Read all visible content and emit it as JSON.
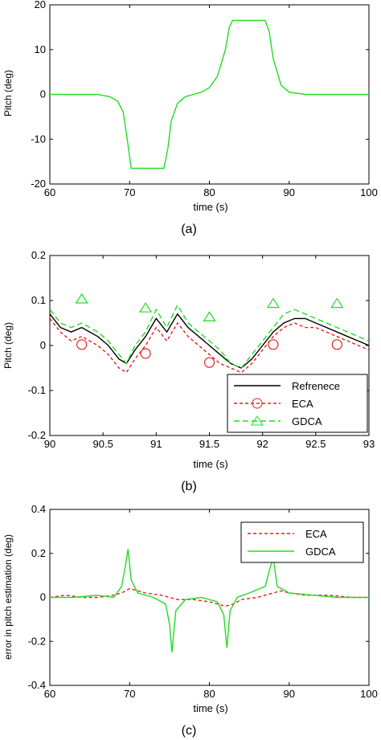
{
  "colors": {
    "reference": "#000000",
    "eca": "#e8201c",
    "gdca": "#22dd22",
    "frame": "#000000"
  },
  "chart_data": [
    {
      "type": "line",
      "caption": "(a)",
      "xlabel": "time (s)",
      "ylabel": "Pitch (deg)",
      "xlim": [
        60,
        100
      ],
      "ylim": [
        -20,
        20
      ],
      "xticks": [
        "60",
        "70",
        "80",
        "90",
        "100"
      ],
      "yticks": [
        "20",
        "10",
        "0",
        "-10",
        "-20"
      ],
      "grid": false,
      "series": [
        {
          "x": [
            60,
            66,
            67.5,
            68.5,
            69.2,
            69.7,
            70.2,
            72,
            74.3,
            74.8,
            75.2,
            76,
            77,
            78,
            79,
            80,
            81,
            82,
            82.5,
            82.9,
            84,
            86,
            87,
            87.5,
            88,
            89,
            90,
            92,
            95,
            100
          ],
          "y": [
            0,
            0,
            -0.5,
            -1.5,
            -4,
            -10,
            -16.5,
            -16.5,
            -16.5,
            -12,
            -6,
            -2,
            -0.5,
            0,
            0.5,
            1.5,
            4,
            10,
            15,
            16.5,
            16.5,
            16.5,
            16.5,
            14,
            8,
            2,
            0.5,
            0,
            0,
            0
          ]
        }
      ]
    },
    {
      "type": "line",
      "caption": "(b)",
      "xlabel": "time (s)",
      "ylabel": "Pitch (deg)",
      "xlim": [
        90,
        93
      ],
      "ylim": [
        -0.2,
        0.2
      ],
      "xticks": [
        "90",
        "90.5",
        "91",
        "91.5",
        "92",
        "92.5",
        "93"
      ],
      "yticks": [
        "0.2",
        "0.1",
        "0",
        "-0.1",
        "-0.2"
      ],
      "grid": false,
      "legend_position": "bottom-right",
      "legend": [
        "Refrenece",
        "ECA",
        "GDCA"
      ],
      "series": [
        {
          "name": "Refrenece",
          "x": [
            90,
            90.1,
            90.2,
            90.3,
            90.45,
            90.55,
            90.65,
            90.72,
            90.8,
            90.9,
            91.0,
            91.1,
            91.2,
            91.3,
            91.4,
            91.5,
            91.6,
            91.7,
            91.8,
            91.9,
            92.0,
            92.1,
            92.2,
            92.3,
            92.4,
            92.5,
            92.6,
            92.7,
            92.8,
            92.9,
            93.0
          ],
          "y": [
            0.07,
            0.04,
            0.03,
            0.04,
            0.02,
            0.0,
            -0.03,
            -0.04,
            -0.01,
            0.02,
            0.06,
            0.03,
            0.07,
            0.04,
            0.02,
            0.0,
            -0.02,
            -0.04,
            -0.05,
            -0.03,
            0.0,
            0.03,
            0.05,
            0.06,
            0.06,
            0.05,
            0.04,
            0.03,
            0.02,
            0.01,
            0.0
          ]
        },
        {
          "name": "ECA",
          "x": [
            90,
            90.1,
            90.2,
            90.3,
            90.45,
            90.55,
            90.65,
            90.72,
            90.8,
            90.9,
            91.0,
            91.1,
            91.2,
            91.3,
            91.4,
            91.5,
            91.6,
            91.7,
            91.8,
            91.9,
            92.0,
            92.1,
            92.2,
            92.3,
            92.4,
            92.5,
            92.6,
            92.7,
            92.8,
            92.9,
            93.0
          ],
          "y": [
            0.06,
            0.03,
            0.01,
            0.02,
            0.0,
            -0.02,
            -0.05,
            -0.06,
            -0.03,
            0.0,
            0.04,
            0.01,
            0.05,
            0.02,
            0.0,
            -0.02,
            -0.04,
            -0.05,
            -0.06,
            -0.04,
            -0.01,
            0.02,
            0.04,
            0.05,
            0.04,
            0.04,
            0.03,
            0.02,
            0.01,
            0.0,
            -0.01
          ]
        },
        {
          "name": "GDCA",
          "x": [
            90,
            90.1,
            90.2,
            90.3,
            90.45,
            90.55,
            90.65,
            90.72,
            90.8,
            90.9,
            91.0,
            91.1,
            91.2,
            91.3,
            91.4,
            91.5,
            91.6,
            91.7,
            91.8,
            91.9,
            92.0,
            92.1,
            92.2,
            92.3,
            92.4,
            92.5,
            92.6,
            92.7,
            92.8,
            92.9,
            93.0
          ],
          "y": [
            0.08,
            0.05,
            0.04,
            0.05,
            0.03,
            0.01,
            -0.02,
            -0.04,
            0.0,
            0.03,
            0.08,
            0.04,
            0.09,
            0.05,
            0.03,
            0.01,
            -0.01,
            -0.04,
            -0.05,
            -0.02,
            0.01,
            0.04,
            0.07,
            0.08,
            0.07,
            0.06,
            0.05,
            0.04,
            0.03,
            0.02,
            0.01
          ]
        }
      ]
    },
    {
      "type": "line",
      "caption": "(c)",
      "xlabel": "time (s)",
      "ylabel": "error in pitch estimation (deg)",
      "xlim": [
        60,
        100
      ],
      "ylim": [
        -0.4,
        0.4
      ],
      "xticks": [
        "60",
        "70",
        "80",
        "90",
        "100"
      ],
      "yticks": [
        "0.4",
        "0.2",
        "0",
        "-0.2",
        "-0.4"
      ],
      "grid": false,
      "legend_position": "top-right",
      "legend": [
        "ECA",
        "GDCA"
      ],
      "series": [
        {
          "name": "ECA",
          "x": [
            60,
            62,
            64,
            66,
            68,
            69,
            70,
            71,
            72,
            74,
            75,
            76,
            78,
            80,
            81,
            82,
            83,
            84,
            86,
            87,
            88,
            89,
            90,
            92,
            95,
            98,
            100
          ],
          "y": [
            0.0,
            0.01,
            0.0,
            0.0,
            0.01,
            0.02,
            0.04,
            0.03,
            0.02,
            0.01,
            0.0,
            -0.01,
            -0.01,
            -0.02,
            -0.03,
            -0.04,
            -0.03,
            -0.01,
            0.0,
            0.01,
            0.02,
            0.03,
            0.02,
            0.01,
            0.01,
            0.0,
            0.0
          ]
        },
        {
          "name": "GDCA",
          "x": [
            60,
            63,
            66,
            68,
            69,
            69.5,
            69.8,
            70.2,
            71,
            73,
            74.5,
            75,
            75.3,
            75.8,
            77,
            79,
            81,
            81.8,
            82.2,
            82.6,
            83.5,
            85,
            87,
            87.5,
            88,
            88.5,
            90,
            93,
            96,
            100
          ],
          "y": [
            0.0,
            0.0,
            0.01,
            0.0,
            0.05,
            0.15,
            0.22,
            0.08,
            0.02,
            0.0,
            -0.03,
            -0.12,
            -0.25,
            -0.06,
            -0.01,
            0.0,
            -0.02,
            -0.08,
            -0.23,
            -0.06,
            0.0,
            0.02,
            0.05,
            0.12,
            0.18,
            0.05,
            0.02,
            0.01,
            0.0,
            0.0
          ]
        }
      ]
    }
  ]
}
